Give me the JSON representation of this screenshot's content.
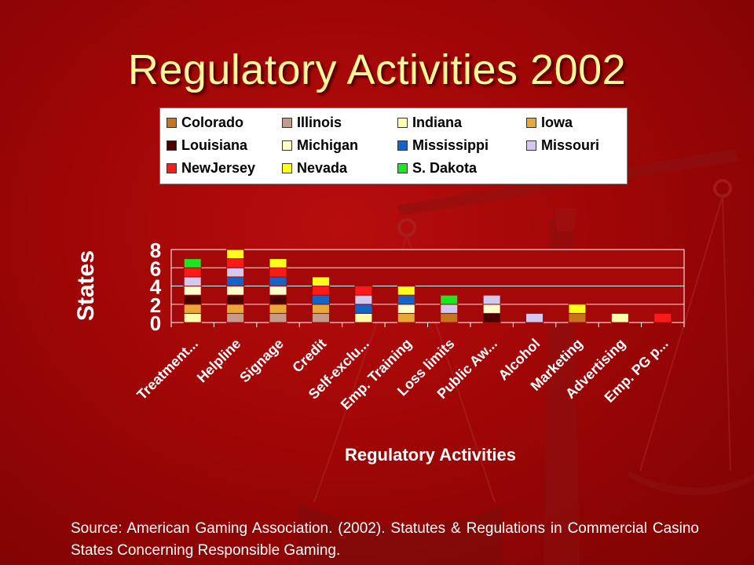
{
  "title": "Regulatory Activities 2002",
  "source": "Source: American Gaming Association. (2002). Statutes & Regulations in Commercial Casino States Concerning Responsible Gaming.",
  "chart_data": {
    "type": "bar",
    "stacked": true,
    "xlabel": "Regulatory Activities",
    "ylabel": "States",
    "ylim": [
      0,
      8
    ],
    "yticks": [
      "0",
      "2",
      "4",
      "6",
      "8"
    ],
    "grid": true,
    "legend_position": "top",
    "categories": [
      "Treatment...",
      "Helpline",
      "Signage",
      "Credit",
      "Self-exclu...",
      "Emp. Training",
      "Loss limits",
      "Public Aw...",
      "Alcohol",
      "Marketing",
      "Advertising",
      "Emp. PG p..."
    ],
    "series": [
      {
        "name": "Colorado",
        "color": "#c8741f",
        "values": [
          0,
          0,
          0,
          0,
          0,
          0,
          1,
          0,
          0,
          1,
          0,
          0
        ]
      },
      {
        "name": "Illinois",
        "color": "#c49a8a",
        "values": [
          0,
          1,
          1,
          1,
          0,
          0,
          0,
          0,
          0,
          0,
          0,
          0
        ]
      },
      {
        "name": "Indiana",
        "color": "#ffffaa",
        "values": [
          1,
          0,
          0,
          0,
          1,
          0,
          0,
          0,
          0,
          0,
          1,
          0
        ]
      },
      {
        "name": "Iowa",
        "color": "#e8a838",
        "values": [
          1,
          1,
          1,
          1,
          0,
          1,
          0,
          0,
          0,
          0,
          0,
          0
        ]
      },
      {
        "name": "Louisiana",
        "color": "#4a0000",
        "values": [
          1,
          1,
          1,
          0,
          0,
          0,
          0,
          1,
          0,
          0,
          0,
          0
        ]
      },
      {
        "name": "Michigan",
        "color": "#ffffcc",
        "values": [
          1,
          1,
          1,
          0,
          0,
          1,
          0,
          1,
          0,
          0,
          0,
          0
        ]
      },
      {
        "name": "Mississippi",
        "color": "#1464c8",
        "values": [
          0,
          1,
          1,
          1,
          1,
          1,
          0,
          0,
          0,
          0,
          0,
          0
        ]
      },
      {
        "name": "Missouri",
        "color": "#d2c8f0",
        "values": [
          1,
          1,
          0,
          0,
          1,
          0,
          1,
          1,
          1,
          0,
          0,
          0
        ]
      },
      {
        "name": "NewJersey",
        "color": "#ff1a1a",
        "values": [
          1,
          1,
          1,
          1,
          1,
          0,
          0,
          0,
          0,
          0,
          0,
          1
        ]
      },
      {
        "name": "Nevada",
        "color": "#ffff1a",
        "values": [
          0,
          1,
          1,
          1,
          0,
          1,
          0,
          0,
          0,
          1,
          0,
          0
        ]
      },
      {
        "name": "S. Dakota",
        "color": "#1ee61e",
        "values": [
          1,
          0,
          0,
          0,
          0,
          0,
          1,
          0,
          0,
          0,
          0,
          0
        ]
      }
    ]
  }
}
